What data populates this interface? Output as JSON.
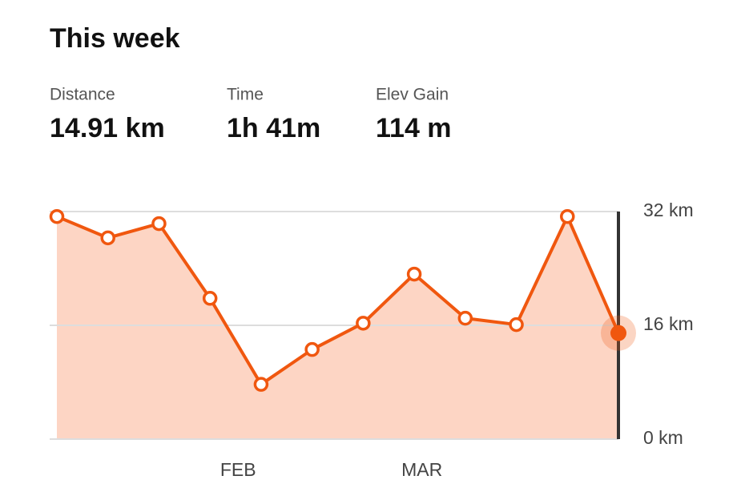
{
  "header": {
    "title": "This week",
    "stats": [
      {
        "label": "Distance",
        "value": "14.91 km"
      },
      {
        "label": "Time",
        "value": "1h 41m"
      },
      {
        "label": "Elev Gain",
        "value": "114 m"
      }
    ]
  },
  "chart_data": {
    "type": "area",
    "x": [
      0,
      1,
      2,
      3,
      4,
      5,
      6,
      7,
      8,
      9,
      10,
      11
    ],
    "xlim": [
      0,
      11
    ],
    "xticks": [
      {
        "value": 3.55,
        "label": "FEB"
      },
      {
        "value": 7.15,
        "label": "MAR"
      }
    ],
    "series": [
      {
        "color": "#f0570f",
        "fill": "#fdd5c4",
        "values": [
          31.3,
          28.3,
          30.3,
          19.8,
          7.7,
          12.6,
          16.3,
          23.2,
          17.0,
          16.1,
          31.3,
          14.91
        ]
      }
    ],
    "ylim": [
      0,
      32
    ],
    "yticks": [
      {
        "value": 0,
        "label": "0 km"
      },
      {
        "value": 16,
        "label": "16 km"
      },
      {
        "value": 32,
        "label": "32 km"
      }
    ],
    "grid": true
  }
}
